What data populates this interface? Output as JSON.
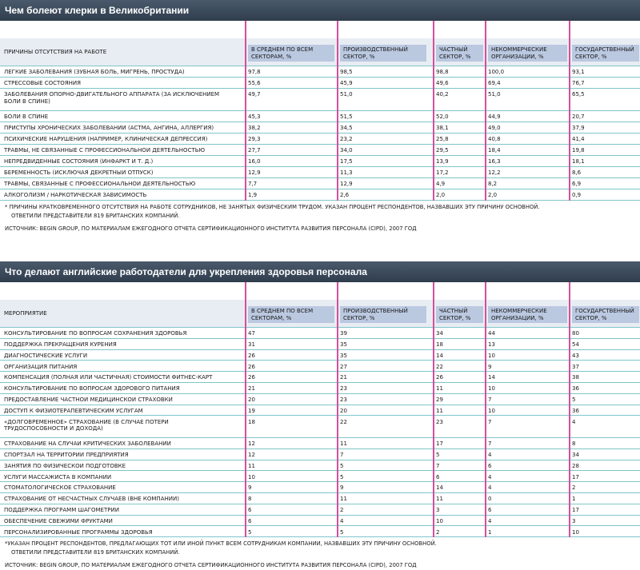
{
  "table1": {
    "title": "Чем болеют клерки в Великобритании",
    "columns": [
      "ПРИЧИНЫ ОТСУТСТВИЯ НА РАБОТЕ",
      "В СРЕДНЕМ ПО ВСЕМ СЕКТОРАМ, %",
      "ПРОИЗВОДСТВЕННЫЙ СЕКТОР, %",
      "ЧАСТНЫЙ СЕКТОР, %",
      "НЕКОММЕРЧЕСКИЕ ОРГАНИЗАЦИИ, %",
      "ГОСУДАРСТВЕННЫЙ СЕКТОР, %"
    ],
    "rows": [
      [
        "ЛЕГКИЕ ЗАБОЛЕВАНИЯ (ЗУБНАЯ БОЛЬ, МИГРЕНЬ, ПРОСТУДА)",
        "97,8",
        "98,5",
        "98,8",
        "100,0",
        "93,1"
      ],
      [
        "СТРЕССОВЫЕ СОСТОЯНИЯ",
        "55,6",
        "45,9",
        "49,6",
        "69,4",
        "76,7"
      ],
      [
        "ЗАБОЛЕВАНИЯ ОПОРНО-ДВИГАТЕЛЬНОГО АППАРАТА (ЗА ИСКЛЮЧЕНИЕМ БОЛИ В СПИНЕ)",
        "49,7",
        "51,0",
        "40,2",
        "51,0",
        "65,5"
      ],
      [
        "БОЛИ В СПИНЕ",
        "45,3",
        "51,5",
        "52,0",
        "44,9",
        "20,7"
      ],
      [
        "ПРИСТУПЫ ХРОНИЧЕСКИХ ЗАБОЛЕВАНИЙ (АСТМА, АНГИНА, АЛЛЕРГИЯ)",
        "38,2",
        "34,5",
        "38,1",
        "49,0",
        "37,9"
      ],
      [
        "ПСИХИЧЕСКИЕ НАРУШЕНИЯ (НАПРИМЕР, КЛИНИЧЕСКАЯ ДЕПРЕССИЯ)",
        "29,3",
        "23,2",
        "25,8",
        "40,8",
        "41,4"
      ],
      [
        "ТРАВМЫ, НЕ СВЯЗАННЫЕ С ПРОФЕССИОНАЛЬНОЙ ДЕЯТЕЛЬНОСТЬЮ",
        "27,7",
        "34,0",
        "29,5",
        "18,4",
        "19,8"
      ],
      [
        "НЕПРЕДВИДЕННЫЕ СОСТОЯНИЯ (ИНФАРКТ И Т. Д.)",
        "16,0",
        "17,5",
        "13,9",
        "16,3",
        "18,1"
      ],
      [
        "БЕРЕМЕННОСТЬ (ИСКЛЮЧАЯ ДЕКРЕТНЫЙ ОТПУСК)",
        "12,9",
        "11,3",
        "17,2",
        "12,2",
        "8,6"
      ],
      [
        "ТРАВМЫ, СВЯЗАННЫЕ С ПРОФЕССИОНАЛЬНОЙ ДЕЯТЕЛЬНОСТЬЮ",
        "7,7",
        "12,9",
        "4,9",
        "8,2",
        "6,9"
      ],
      [
        "АЛКОГОЛИЗМ / НАРКОТИЧЕСКАЯ ЗАВИСИМОСТЬ",
        "1,9",
        "2,6",
        "2,0",
        "2,0",
        "0,9"
      ]
    ],
    "note": [
      "* ПРИЧИНЫ КРАТКОВРЕМЕННОГО ОТСУТСТВИЯ НА РАБОТЕ СОТРУДНИКОВ, НЕ ЗАНЯТЫХ ФИЗИЧЕСКИМ ТРУДОМ. УКАЗАН ПРОЦЕНТ РЕСПОНДЕНТОВ, НАЗВАВШИХ ЭТУ ПРИЧИНУ ОСНОВНОЙ.",
      "ОТВЕТИЛИ ПРЕДСТАВИТЕЛИ 819 БРИТАНСКИХ КОМПАНИЙ."
    ],
    "source": "ИСТОЧНИК: BEGIN GROUP, ПО МАТЕРИАЛАМ ЕЖЕГОДНОГО ОТЧЕТА СЕРТИФИКАЦИОННОГО ИНСТИТУТА РАЗВИТИЯ ПЕРСОНАЛА (CIPD), 2007 ГОД"
  },
  "table2": {
    "title": "Что делают английские работодатели для укрепления здоровья персонала",
    "columns": [
      "МЕРОПРИЯТИЕ",
      "В СРЕДНЕМ ПО ВСЕМ СЕКТОРАМ, %",
      "ПРОИЗВОДСТВЕННЫЙ СЕКТОР, %",
      "ЧАСТНЫЙ СЕКТОР, %",
      "НЕКОММЕРЧЕСКИЕ ОРГАНИЗАЦИИ, %",
      "ГОСУДАРСТВЕННЫЙ СЕКТОР, %"
    ],
    "rows": [
      [
        "КОНСУЛЬТИРОВАНИЕ ПО ВОПРОСАМ СОХРАНЕНИЯ ЗДОРОВЬЯ",
        "47",
        "39",
        "34",
        "44",
        "80"
      ],
      [
        "ПОДДЕРЖКА ПРЕКРАЩЕНИЯ КУРЕНИЯ",
        "31",
        "35",
        "18",
        "13",
        "54"
      ],
      [
        "ДИАГНОСТИЧЕСКИЕ УСЛУГИ",
        "26",
        "35",
        "14",
        "10",
        "43"
      ],
      [
        "ОРГАНИЗАЦИЯ ПИТАНИЯ",
        "26",
        "27",
        "22",
        "9",
        "37"
      ],
      [
        "КОМПЕНСАЦИЯ (ПОЛНАЯ ИЛИ ЧАСТИЧНАЯ) СТОИМОСТИ ФИТНЕС-КАРТ",
        "26",
        "21",
        "26",
        "14",
        "38"
      ],
      [
        "КОНСУЛЬТИРОВАНИЕ ПО ВОПРОСАМ ЗДОРОВОГО ПИТАНИЯ",
        "21",
        "23",
        "11",
        "10",
        "36"
      ],
      [
        "ПРЕДОСТАВЛЕНИЕ ЧАСТНОЙ МЕДИЦИНСКОЙ СТРАХОВКИ",
        "20",
        "23",
        "29",
        "7",
        "5"
      ],
      [
        "ДОСТУП К ФИЗИОТЕРАПЕВТИЧЕСКИМ УСЛУГАМ",
        "19",
        "20",
        "11",
        "10",
        "36"
      ],
      [
        "«ДОЛГОВРЕМЕННОЕ» СТРАХОВАНИЕ (В СЛУЧАЕ ПОТЕРИ ТРУДОСПОСОБНОСТИ И ДОХОДА)",
        "18",
        "22",
        "23",
        "7",
        "4"
      ],
      [
        "СТРАХОВАНИЕ НА СЛУЧАЙ КРИТИЧЕСКИХ ЗАБОЛЕВАНИЙ",
        "12",
        "11",
        "17",
        "7",
        "8"
      ],
      [
        "СПОРТЗАЛ НА ТЕРРИТОРИИ ПРЕДПРИЯТИЯ",
        "12",
        "7",
        "5",
        "4",
        "34"
      ],
      [
        "ЗАНЯТИЯ ПО ФИЗИЧЕСКОЙ ПОДГОТОВКЕ",
        "11",
        "5",
        "7",
        "6",
        "28"
      ],
      [
        "УСЛУГИ МАССАЖИСТА В КОМПАНИИ",
        "10",
        "5",
        "6",
        "4",
        "17"
      ],
      [
        "СТОМАТОЛОГИЧЕСКОЕ СТРАХОВАНИЕ",
        "9",
        "9",
        "14",
        "4",
        "2"
      ],
      [
        "СТРАХОВАНИЕ ОТ НЕСЧАСТНЫХ СЛУЧАЕВ (ВНЕ КОМПАНИИ)",
        "8",
        "11",
        "11",
        "0",
        "1"
      ],
      [
        "ПОДДЕРЖКА ПРОГРАММ ШАГОМЕТРИИ",
        "6",
        "2",
        "3",
        "6",
        "17"
      ],
      [
        "ОБЕСПЕЧЕНИЕ СВЕЖИМИ ФРУКТАМИ",
        "6",
        "4",
        "10",
        "4",
        "3"
      ],
      [
        "ПЕРСОНАЛИЗИРОВАННЫЕ ПРОГРАММЫ ЗДОРОВЬЯ",
        "5",
        "5",
        "2",
        "1",
        "10"
      ]
    ],
    "note": [
      "*УКАЗАН ПРОЦЕНТ РЕСПОНДЕНТОВ, ПРЕДЛАГАЮЩИХ ТОТ ИЛИ ИНОЙ ПУНКТ ВСЕМ СОТРУДНИКАМ КОМПАНИИ, НАЗВАВШИХ ЭТУ ПРИЧИНУ ОСНОВНОЙ.",
      "ОТВЕТИЛИ ПРЕДСТАВИТЕЛИ 819 БРИТАНСКИХ КОМПАНИЙ."
    ],
    "source": "ИСТОЧНИК: BEGIN GROUP, ПО МАТЕРИАЛАМ ЕЖЕГОДНОГО ОТЧЕТА СЕРТИФИКАЦИОННОГО ИНСТИТУТА РАЗВИТИЯ ПЕРСОНАЛА (CIPD), 2007 ГОД"
  }
}
